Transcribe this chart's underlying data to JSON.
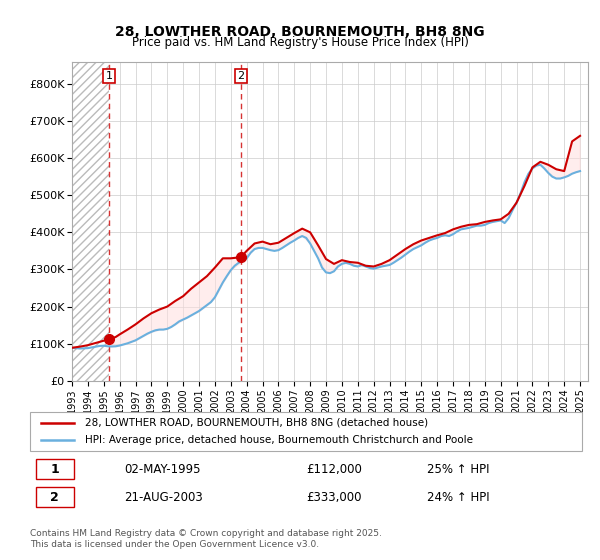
{
  "title_line1": "28, LOWTHER ROAD, BOURNEMOUTH, BH8 8NG",
  "title_line2": "Price paid vs. HM Land Registry's House Price Index (HPI)",
  "ylabel": "",
  "ylim": [
    0,
    860000
  ],
  "yticks": [
    0,
    100000,
    200000,
    300000,
    400000,
    500000,
    600000,
    700000,
    800000
  ],
  "ytick_labels": [
    "£0",
    "£100K",
    "£200K",
    "£300K",
    "£400K",
    "£500K",
    "£600K",
    "£700K",
    "£800K"
  ],
  "xlim_start": 1993.0,
  "xlim_end": 2025.5,
  "hpi_color": "#6ab0de",
  "price_color": "#cc0000",
  "marker_color": "#cc0000",
  "hatch_color": "#d0d0d0",
  "background_color": "#ffffff",
  "grid_color": "#cccccc",
  "legend_line1": "28, LOWTHER ROAD, BOURNEMOUTH, BH8 8NG (detached house)",
  "legend_line2": "HPI: Average price, detached house, Bournemouth Christchurch and Poole",
  "purchase1_label": "1",
  "purchase1_date": "02-MAY-1995",
  "purchase1_price": "£112,000",
  "purchase1_hpi": "25% ↑ HPI",
  "purchase1_year": 1995.33,
  "purchase1_value": 112000,
  "purchase2_label": "2",
  "purchase2_date": "21-AUG-2003",
  "purchase2_price": "£333,000",
  "purchase2_hpi": "24% ↑ HPI",
  "purchase2_year": 2003.63,
  "purchase2_value": 333000,
  "footer": "Contains HM Land Registry data © Crown copyright and database right 2025.\nThis data is licensed under the Open Government Licence v3.0.",
  "hpi_data": {
    "years": [
      1993.0,
      1993.25,
      1993.5,
      1993.75,
      1994.0,
      1994.25,
      1994.5,
      1994.75,
      1995.0,
      1995.25,
      1995.5,
      1995.75,
      1996.0,
      1996.25,
      1996.5,
      1996.75,
      1997.0,
      1997.25,
      1997.5,
      1997.75,
      1998.0,
      1998.25,
      1998.5,
      1998.75,
      1999.0,
      1999.25,
      1999.5,
      1999.75,
      2000.0,
      2000.25,
      2000.5,
      2000.75,
      2001.0,
      2001.25,
      2001.5,
      2001.75,
      2002.0,
      2002.25,
      2002.5,
      2002.75,
      2003.0,
      2003.25,
      2003.5,
      2003.75,
      2004.0,
      2004.25,
      2004.5,
      2004.75,
      2005.0,
      2005.25,
      2005.5,
      2005.75,
      2006.0,
      2006.25,
      2006.5,
      2006.75,
      2007.0,
      2007.25,
      2007.5,
      2007.75,
      2008.0,
      2008.25,
      2008.5,
      2008.75,
      2009.0,
      2009.25,
      2009.5,
      2009.75,
      2010.0,
      2010.25,
      2010.5,
      2010.75,
      2011.0,
      2011.25,
      2011.5,
      2011.75,
      2012.0,
      2012.25,
      2012.5,
      2012.75,
      2013.0,
      2013.25,
      2013.5,
      2013.75,
      2014.0,
      2014.25,
      2014.5,
      2014.75,
      2015.0,
      2015.25,
      2015.5,
      2015.75,
      2016.0,
      2016.25,
      2016.5,
      2016.75,
      2017.0,
      2017.25,
      2017.5,
      2017.75,
      2018.0,
      2018.25,
      2018.5,
      2018.75,
      2019.0,
      2019.25,
      2019.5,
      2019.75,
      2020.0,
      2020.25,
      2020.5,
      2020.75,
      2021.0,
      2021.25,
      2021.5,
      2021.75,
      2022.0,
      2022.25,
      2022.5,
      2022.75,
      2023.0,
      2023.25,
      2023.5,
      2023.75,
      2024.0,
      2024.25,
      2024.5,
      2024.75,
      2025.0
    ],
    "values": [
      89000,
      88000,
      87000,
      87500,
      88000,
      90000,
      92000,
      94000,
      94500,
      93000,
      92500,
      93000,
      95000,
      98000,
      101000,
      105000,
      109000,
      115000,
      121000,
      127000,
      132000,
      136000,
      138000,
      138000,
      140000,
      145000,
      152000,
      160000,
      165000,
      170000,
      176000,
      182000,
      188000,
      196000,
      204000,
      212000,
      225000,
      245000,
      265000,
      282000,
      298000,
      310000,
      318000,
      322000,
      330000,
      345000,
      355000,
      358000,
      358000,
      355000,
      352000,
      350000,
      352000,
      358000,
      365000,
      372000,
      378000,
      385000,
      390000,
      385000,
      370000,
      350000,
      330000,
      305000,
      292000,
      290000,
      295000,
      308000,
      315000,
      318000,
      315000,
      310000,
      308000,
      312000,
      308000,
      304000,
      302000,
      305000,
      308000,
      310000,
      312000,
      318000,
      325000,
      332000,
      340000,
      348000,
      355000,
      360000,
      365000,
      372000,
      378000,
      382000,
      385000,
      390000,
      392000,
      390000,
      395000,
      402000,
      408000,
      410000,
      412000,
      415000,
      418000,
      418000,
      420000,
      425000,
      428000,
      430000,
      432000,
      425000,
      438000,
      460000,
      480000,
      505000,
      535000,
      558000,
      572000,
      580000,
      582000,
      572000,
      560000,
      550000,
      545000,
      545000,
      548000,
      552000,
      558000,
      562000,
      565000
    ]
  },
  "price_data": {
    "years": [
      1993.0,
      1993.5,
      1994.0,
      1994.5,
      1995.33,
      1995.75,
      1996.0,
      1996.5,
      1997.0,
      1997.5,
      1998.0,
      1998.5,
      1999.0,
      1999.5,
      2000.0,
      2000.5,
      2001.0,
      2001.5,
      2002.0,
      2002.5,
      2003.0,
      2003.63,
      2004.0,
      2004.5,
      2005.0,
      2005.5,
      2006.0,
      2006.5,
      2007.0,
      2007.5,
      2008.0,
      2008.5,
      2009.0,
      2009.5,
      2010.0,
      2010.5,
      2011.0,
      2011.5,
      2012.0,
      2012.5,
      2013.0,
      2013.5,
      2014.0,
      2014.5,
      2015.0,
      2015.5,
      2016.0,
      2016.5,
      2017.0,
      2017.5,
      2018.0,
      2018.5,
      2019.0,
      2019.5,
      2020.0,
      2020.5,
      2021.0,
      2021.5,
      2022.0,
      2022.5,
      2023.0,
      2023.5,
      2024.0,
      2024.5,
      2025.0
    ],
    "values": [
      89000,
      92000,
      96000,
      102000,
      112000,
      118000,
      125000,
      138000,
      152000,
      168000,
      182000,
      192000,
      200000,
      215000,
      228000,
      248000,
      265000,
      282000,
      305000,
      330000,
      330000,
      333000,
      350000,
      370000,
      375000,
      368000,
      372000,
      385000,
      398000,
      410000,
      400000,
      365000,
      328000,
      315000,
      325000,
      320000,
      318000,
      310000,
      308000,
      315000,
      325000,
      340000,
      355000,
      368000,
      378000,
      385000,
      392000,
      398000,
      408000,
      415000,
      420000,
      422000,
      428000,
      432000,
      435000,
      450000,
      480000,
      525000,
      575000,
      590000,
      582000,
      570000,
      565000,
      645000,
      660000
    ]
  }
}
